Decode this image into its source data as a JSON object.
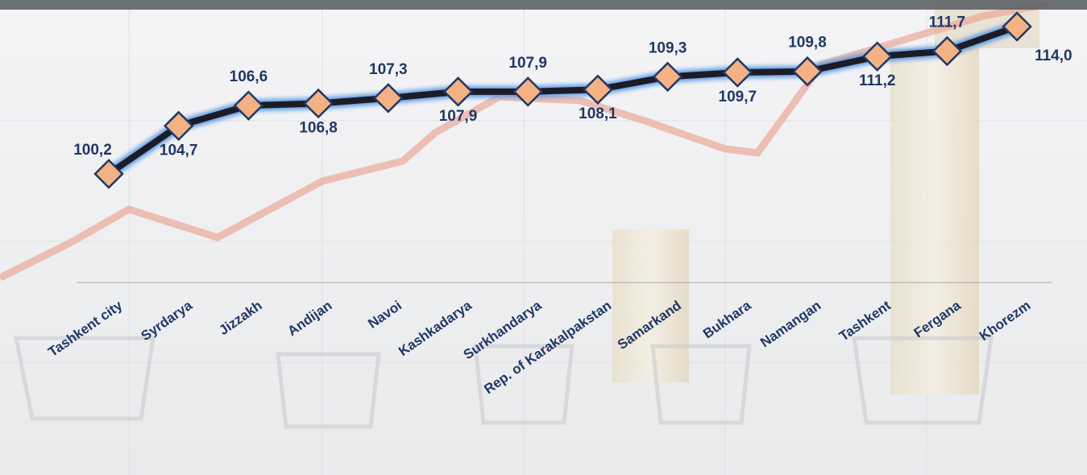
{
  "chart_data": {
    "type": "line",
    "categories": [
      "Tashkent city",
      "Syrdarya",
      "Jizzakh",
      "Andijan",
      "Navoi",
      "Kashkadarya",
      "Surkhandarya",
      "Rep. of Karakalpakstan",
      "Samarkand",
      "Bukhara",
      "Namangan",
      "Tashkent",
      "Fergana",
      "Khorezm"
    ],
    "series": [
      {
        "color": "#1c1c28",
        "values": [
          100.2,
          104.7,
          106.6,
          106.8,
          107.3,
          107.9,
          107.9,
          108.1,
          109.3,
          109.7,
          109.8,
          111.2,
          111.7,
          114.0
        ],
        "value_labels": [
          "100,2",
          "104,7",
          "106,6",
          "106,8",
          "107,3",
          "107,9",
          "107,9",
          "108,1",
          "109,3",
          "109,7",
          "109,8",
          "111,2",
          "111,7",
          "114,0"
        ],
        "marker_color": "#f4b183"
      }
    ]
  }
}
